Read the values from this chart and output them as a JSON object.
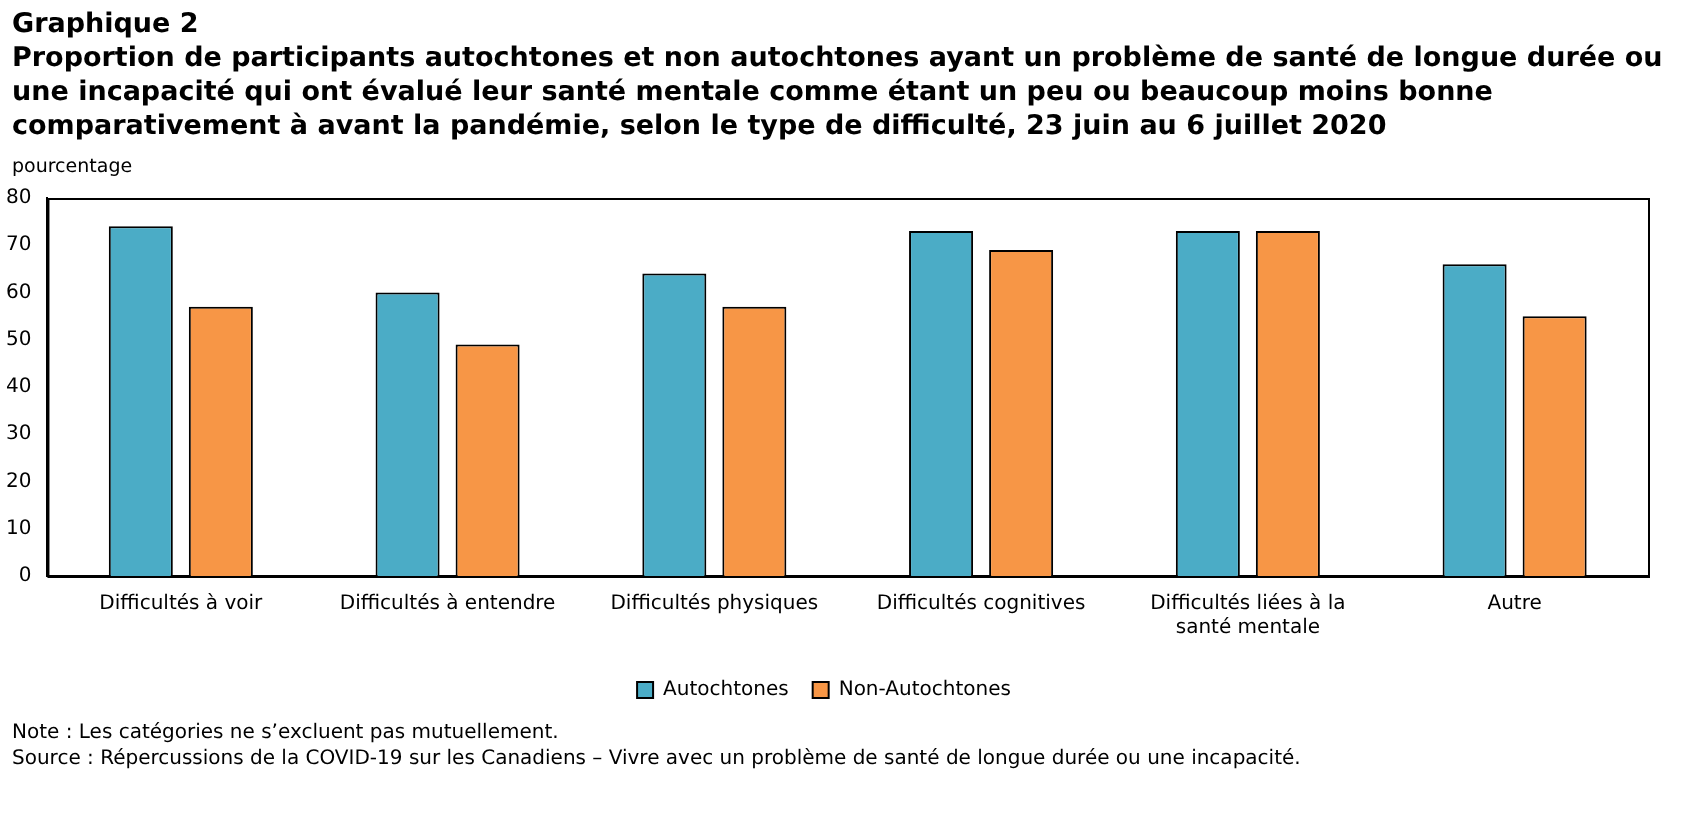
{
  "chart_data": {
    "type": "bar",
    "title": "Graphique 2",
    "subtitle": "Proportion de participants autochtones et non autochtones ayant un problème de santé de longue durée ou une incapacité qui ont évalué leur santé mentale comme étant un peu ou beaucoup moins bonne comparativement à avant la pandémie, selon le type de difficulté, 23 juin au 6 juillet 2020",
    "ylabel": "pourcentage",
    "categories": [
      "Difficultés à voir",
      "Difficultés à entendre",
      "Difficultés physiques",
      "Difficultés cognitives",
      "Difficultés liées à la santé mentale",
      "Autre"
    ],
    "series": [
      {
        "name": "Autochtones",
        "color": "#4bacc6",
        "values": [
          74,
          60,
          64,
          73,
          73,
          66
        ]
      },
      {
        "name": "Non-Autochtones",
        "color": "#f79646",
        "values": [
          57,
          49,
          57,
          69,
          73,
          55
        ]
      }
    ],
    "ylim": [
      0,
      80
    ],
    "yticks": [
      0,
      10,
      20,
      30,
      40,
      50,
      60,
      70,
      80
    ],
    "grid": false,
    "legend": "bottom",
    "annotations": [
      "Note : Les catégories ne s’excluent pas mutuellement.",
      "Source : Répercussions de la COVID-19 sur les Canadiens – Vivre avec un problème de santé de longue durée ou une incapacité."
    ]
  }
}
